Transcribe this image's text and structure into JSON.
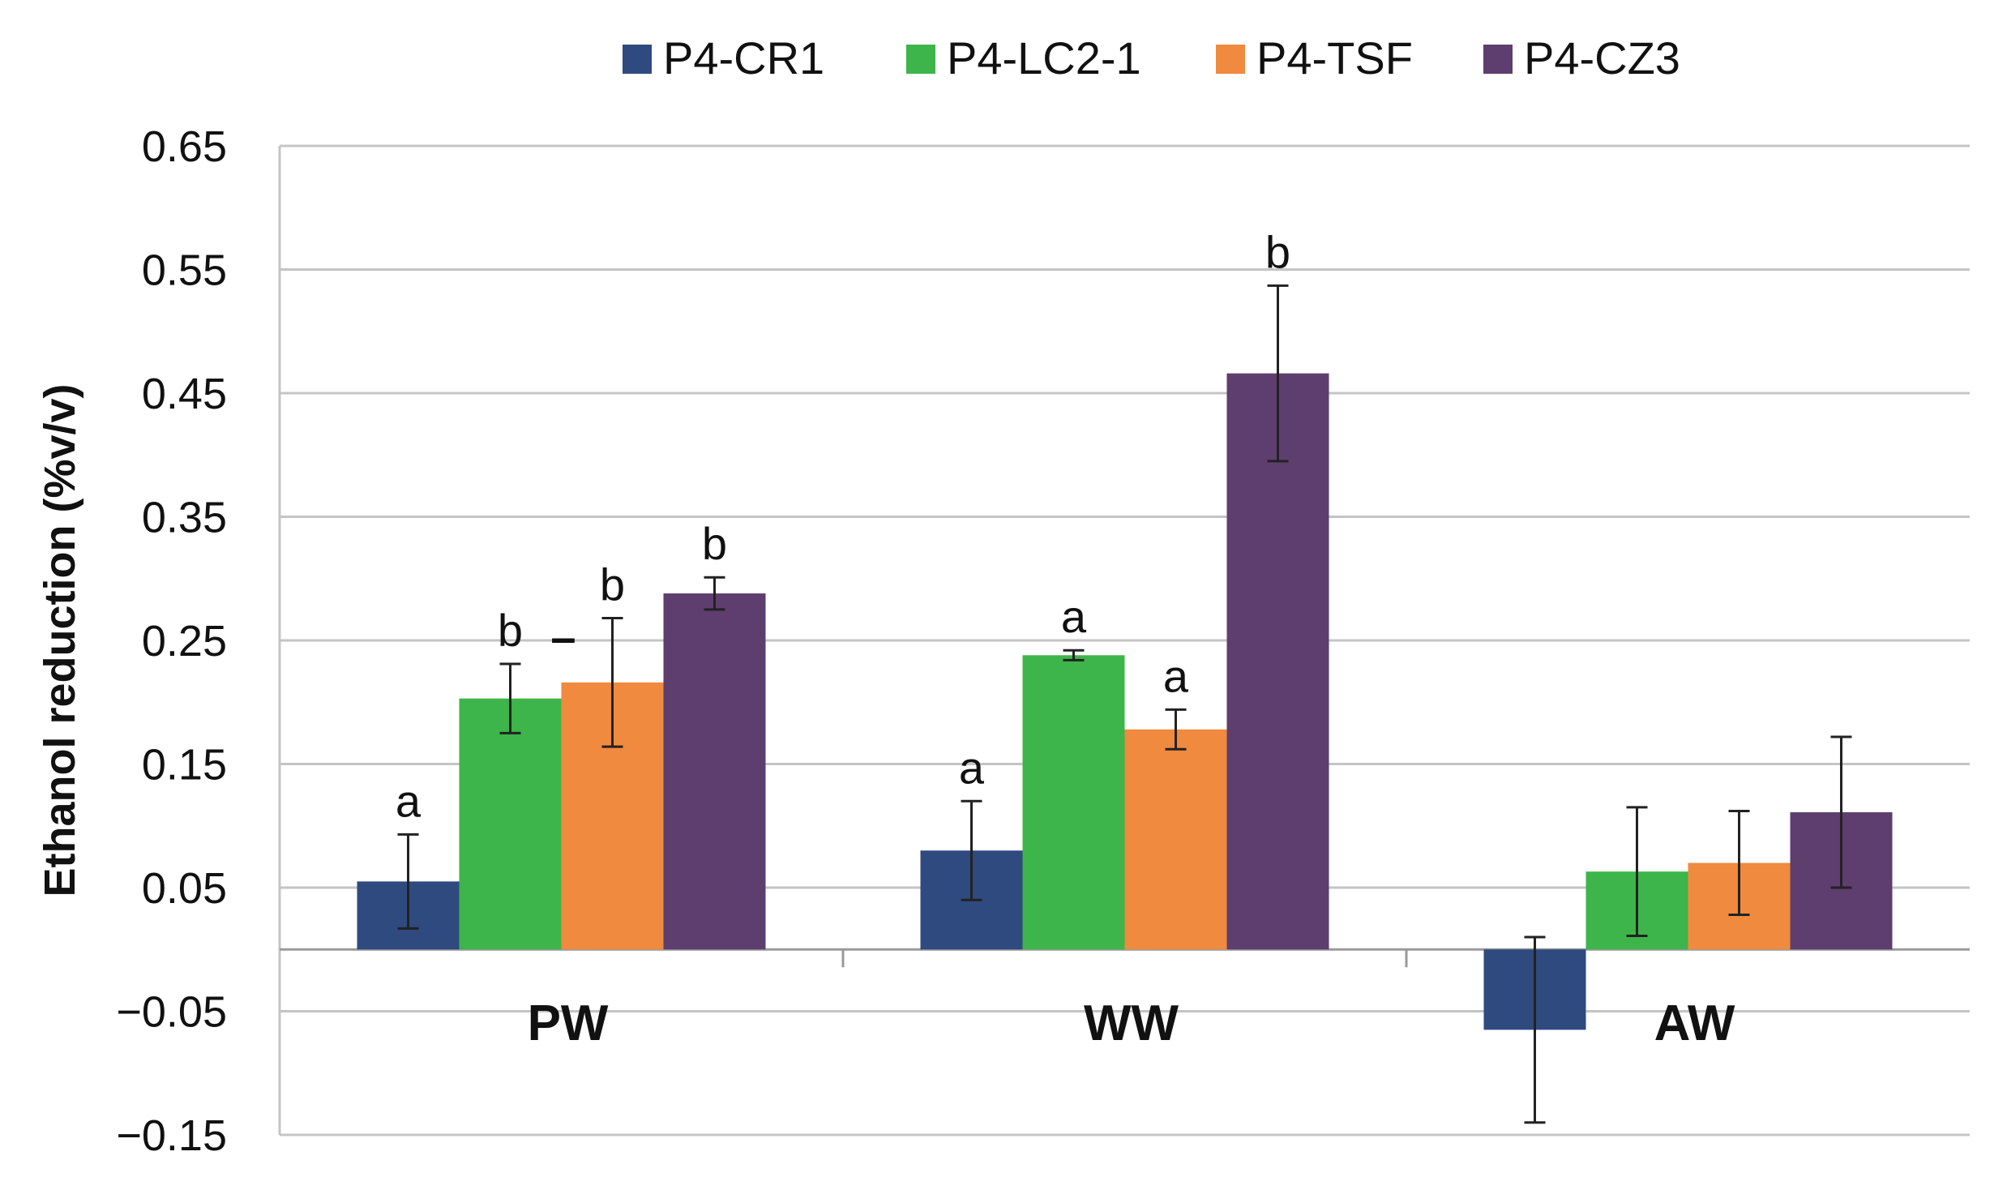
{
  "chart_data": {
    "type": "bar",
    "title": "",
    "xlabel": "",
    "ylabel": "Ethanol reduction (%v/v)",
    "ylim": [
      -0.15,
      0.65
    ],
    "yticks": [
      -0.15,
      -0.05,
      0.05,
      0.15,
      0.25,
      0.35,
      0.45,
      0.55,
      0.65
    ],
    "ytick_labels": [
      "−0.15",
      "−0.05",
      "0.05",
      "0.15",
      "0.25",
      "0.35",
      "0.45",
      "0.55",
      "0.65"
    ],
    "grid": true,
    "legend_position": "top",
    "categories": [
      "PW",
      "WW",
      "AW"
    ],
    "series": [
      {
        "name": "P4-CR1",
        "color": "#2F4A7F",
        "values": [
          0.055,
          0.08,
          -0.065
        ],
        "errors": [
          0.038,
          0.04,
          0.075
        ],
        "letters": [
          "a",
          "a",
          ""
        ]
      },
      {
        "name": "P4-LC2-1",
        "color": "#3DB54A",
        "values": [
          0.203,
          0.238,
          0.063
        ],
        "errors": [
          0.028,
          0.004,
          0.052
        ],
        "letters": [
          "b",
          "a",
          ""
        ]
      },
      {
        "name": "P4-TSF",
        "color": "#F08A3E",
        "values": [
          0.216,
          0.178,
          0.07
        ],
        "errors": [
          0.052,
          0.016,
          0.042
        ],
        "letters": [
          "b",
          "a",
          ""
        ]
      },
      {
        "name": "P4-CZ3",
        "color": "#5E3E6E",
        "values": [
          0.288,
          0.466,
          0.111
        ],
        "errors": [
          0.013,
          0.071,
          0.061
        ],
        "letters": [
          "b",
          "b",
          ""
        ]
      }
    ],
    "extra_mark": "–"
  }
}
